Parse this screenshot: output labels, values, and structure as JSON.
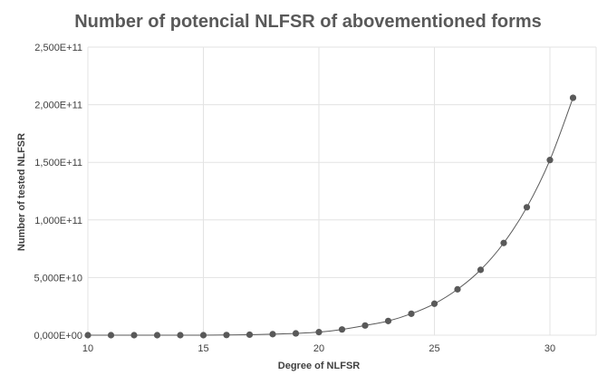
{
  "chart_data": {
    "type": "scatter",
    "title": "Number of potencial NLFSR of abovementioned forms",
    "xlabel": "Degree of NLFSR",
    "ylabel": "Number of tested NLFSR",
    "xlim": [
      10,
      32
    ],
    "ylim": [
      0,
      250000000000
    ],
    "x_ticks": [
      10,
      15,
      20,
      25,
      30
    ],
    "x_tick_labels": [
      "10",
      "15",
      "20",
      "25",
      "30"
    ],
    "y_ticks": [
      0,
      50000000000,
      100000000000,
      150000000000,
      200000000000,
      250000000000
    ],
    "y_tick_labels": [
      "0,000E+00",
      "5,000E+10",
      "1,000E+11",
      "1,500E+11",
      "2,000E+11",
      "2,500E+11"
    ],
    "grid": true,
    "smooth_line": true,
    "series": [
      {
        "name": "NLFSR",
        "x": [
          10,
          11,
          12,
          13,
          14,
          15,
          16,
          17,
          18,
          19,
          20,
          21,
          22,
          23,
          24,
          25,
          26,
          27,
          28,
          29,
          30,
          31
        ],
        "values": [
          0,
          0,
          0,
          0,
          0,
          10000000,
          150000000,
          430000000,
          880000000,
          1550000000,
          2650000000,
          4950000000,
          8400000000,
          12300000000,
          18600000000,
          27300000000,
          39800000000,
          56700000000,
          80000000000,
          111000000000,
          152000000000,
          206000000000
        ]
      }
    ],
    "colors": {
      "series": "#595959",
      "grid": "#e3e3e3",
      "text": "#404040",
      "title": "#595959"
    }
  }
}
